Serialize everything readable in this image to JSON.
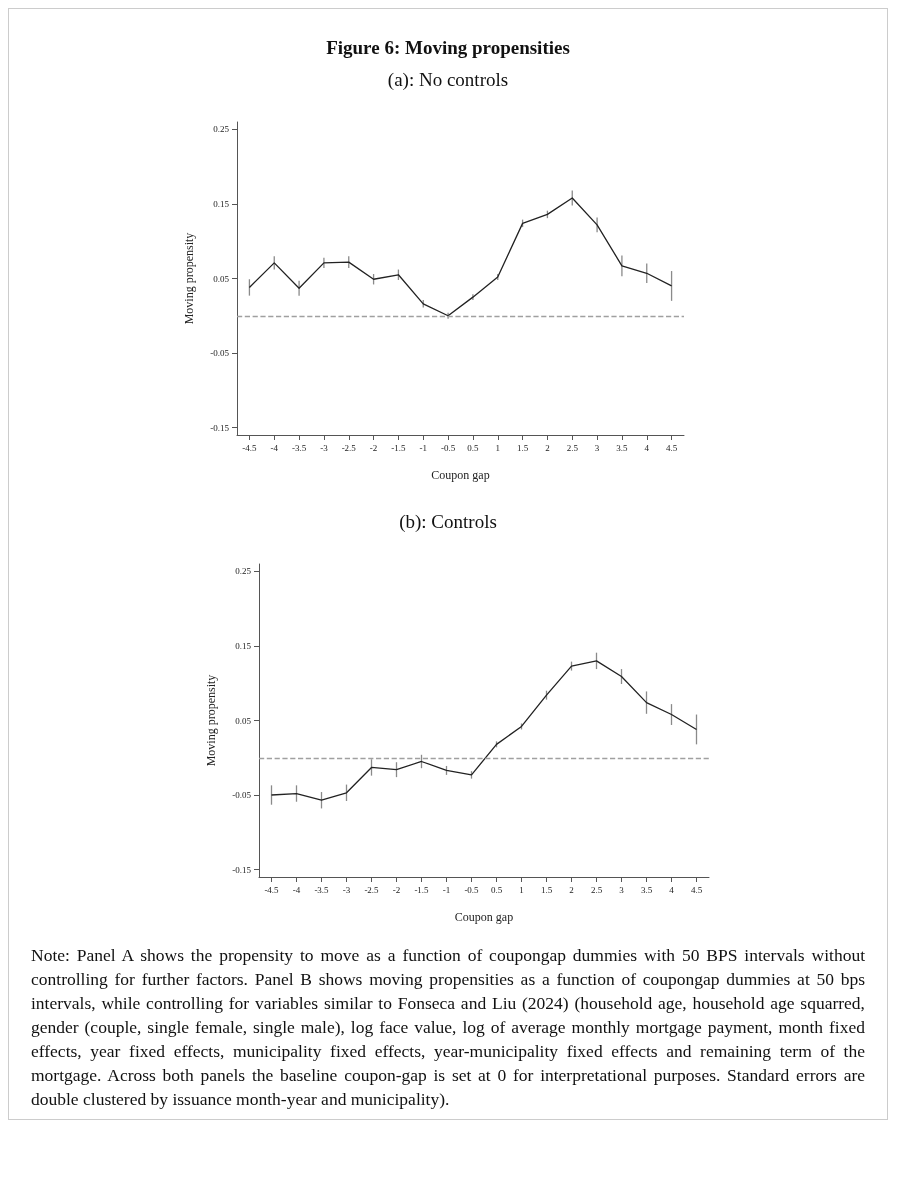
{
  "chart_data": [
    {
      "type": "line",
      "title": "Figure 6: Moving propensities",
      "subtitle": "(a): No controls",
      "xlabel": "Coupon gap",
      "ylabel": "Moving propensity",
      "categories": [
        "-4.5",
        "-4",
        "-3.5",
        "-3",
        "-2.5",
        "-2",
        "-1.5",
        "-1",
        "-0.5",
        "0.5",
        "1",
        "1.5",
        "2",
        "2.5",
        "3",
        "3.5",
        "4",
        "4.5"
      ],
      "series": [
        {
          "color": "#222222",
          "values": [
            0.038,
            0.071,
            0.037,
            0.071,
            0.072,
            0.049,
            0.055,
            0.016,
            0.0,
            0.025,
            0.052,
            0.124,
            0.136,
            0.158,
            0.122,
            0.067,
            0.057,
            0.04
          ],
          "errors": [
            0.011,
            0.009,
            0.01,
            0.007,
            0.008,
            0.007,
            0.007,
            0.005,
            0.004,
            0.004,
            0.004,
            0.005,
            0.005,
            0.01,
            0.01,
            0.014,
            0.013,
            0.02
          ]
        }
      ],
      "ylim": [
        -0.16,
        0.26
      ],
      "yticks": [
        -0.15,
        -0.05,
        0.05,
        0.15,
        0.25
      ],
      "grid": false,
      "marker": "none",
      "line_style": "solid",
      "ref_lines": [
        {
          "axis": "y",
          "value": 0,
          "color": "#a0a0a0",
          "line_style": "dashed"
        }
      ]
    },
    {
      "type": "line",
      "subtitle": "(b): Controls",
      "xlabel": "Coupon gap",
      "ylabel": "Moving propensity",
      "categories": [
        "-4.5",
        "-4",
        "-3.5",
        "-3",
        "-2.5",
        "-2",
        "-1.5",
        "-1",
        "-0.5",
        "0.5",
        "1",
        "1.5",
        "2",
        "2.5",
        "3",
        "3.5",
        "4",
        "4.5"
      ],
      "series": [
        {
          "color": "#222222",
          "values": [
            -0.05,
            -0.048,
            -0.057,
            -0.047,
            -0.013,
            -0.016,
            -0.005,
            -0.017,
            -0.023,
            0.018,
            0.042,
            0.084,
            0.123,
            0.13,
            0.109,
            0.074,
            0.058,
            0.038
          ],
          "errors": [
            0.013,
            0.011,
            0.011,
            0.011,
            0.011,
            0.01,
            0.009,
            0.006,
            0.005,
            0.004,
            0.004,
            0.006,
            0.006,
            0.011,
            0.01,
            0.015,
            0.014,
            0.02
          ]
        }
      ],
      "ylim": [
        -0.16,
        0.26
      ],
      "yticks": [
        -0.15,
        -0.05,
        0.05,
        0.15,
        0.25
      ],
      "grid": false,
      "marker": "none",
      "line_style": "solid",
      "ref_lines": [
        {
          "axis": "y",
          "value": 0,
          "color": "#a0a0a0",
          "line_style": "dashed"
        }
      ],
      "annotations": [
        "Note: Panel A shows the propensity to move as a function of coupongap dummies with 50 BPS intervals without controlling for further factors. Panel B shows moving propensities as a function of coupongap dummies at 50 bps intervals, while controlling for variables similar to Fonseca and Liu (2024) (household age, household age squarred, gender (couple, single female, single male), log face value, log of average monthly mortgage payment, month fixed effects, year fixed effects, municipality fixed effects, year-municipality fixed effects and remaining term of the mortgage. Across both panels the baseline coupon-gap is set at 0 for interpretational purposes. Standard errors are double clustered by issuance month-year and municipality)."
      ]
    }
  ]
}
